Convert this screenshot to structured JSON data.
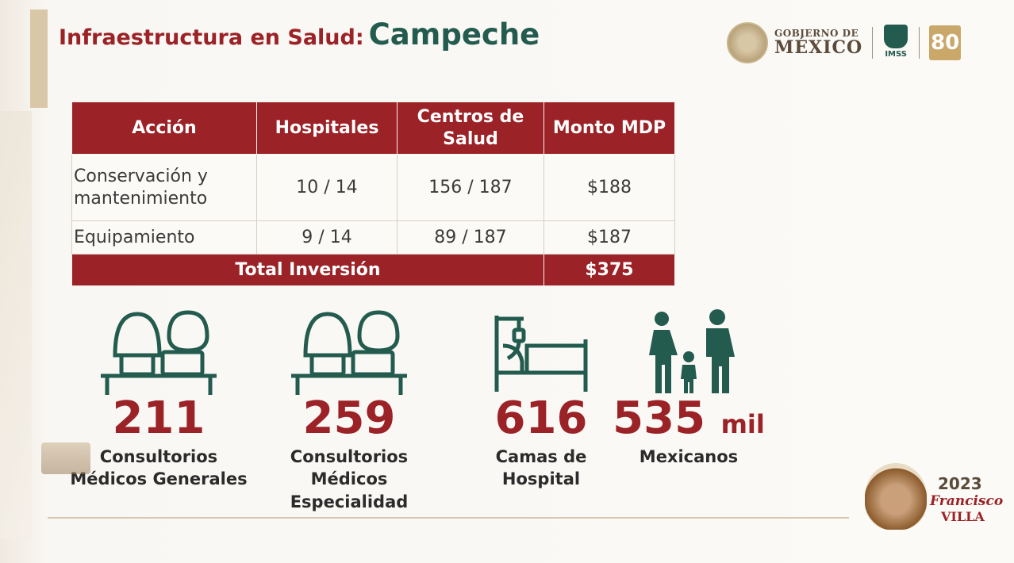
{
  "title": {
    "part1": "Infraestructura en Salud:",
    "part2": "Campeche"
  },
  "header_logos": {
    "gov_line1": "GOBIERNO DE",
    "gov_line2": "MÉXICO",
    "imss_label": "IMSS",
    "ochenta": "80"
  },
  "table": {
    "headers": {
      "accion": "Acción",
      "hospitales": "Hospitales",
      "centros": "Centros de Salud",
      "monto": "Monto MDP"
    },
    "rows": [
      {
        "accion": "Conservación y mantenimiento",
        "hospitales": "10 / 14",
        "centros": "156 / 187",
        "monto": "$188"
      },
      {
        "accion": "Equipamiento",
        "hospitales": "9 / 14",
        "centros": "89 / 187",
        "monto": "$187"
      }
    ],
    "total": {
      "label": "Total Inversión",
      "value": "$375"
    }
  },
  "stats": [
    {
      "icon": "doctor-patient-desk-icon",
      "number": "211",
      "unit": "",
      "label1": "Consultorios",
      "label2": "Médicos Generales",
      "label3": ""
    },
    {
      "icon": "doctor-patient-desk-icon",
      "number": "259",
      "unit": "",
      "label1": "Consultorios",
      "label2": "Médicos",
      "label3": "Especialidad"
    },
    {
      "icon": "hospital-bed-icon",
      "number": "616",
      "unit": "",
      "label1": "Camas de",
      "label2": "Hospital",
      "label3": ""
    },
    {
      "icon": "family-icon",
      "number": "535",
      "unit": "mil",
      "label1": "Mexicanos",
      "label2": "",
      "label3": ""
    }
  ],
  "footer": {
    "year": "2023",
    "name1": "Francisco",
    "name2": "VILLA"
  },
  "colors": {
    "guinda": "#9b2226",
    "verde": "#235b4e",
    "dorado": "#d9c7a7"
  }
}
